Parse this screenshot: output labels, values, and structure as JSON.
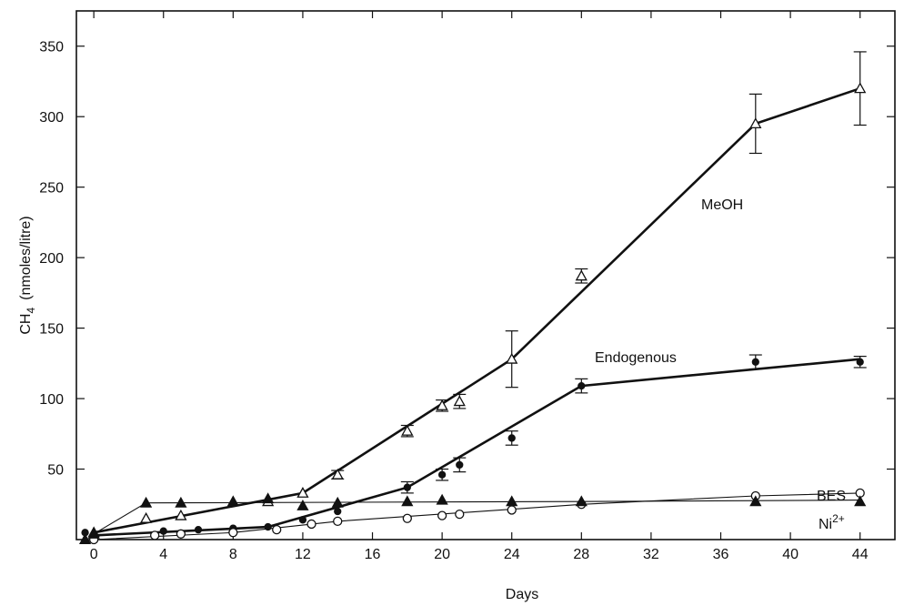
{
  "chart_data": {
    "type": "line",
    "xlabel": "Days",
    "ylabel": "CH",
    "ylabel_sub": "4",
    "ylabel_units": "(nmoles/litre)",
    "xlim": [
      -1,
      46
    ],
    "ylim": [
      0,
      375
    ],
    "xticks": [
      0,
      4,
      8,
      12,
      16,
      20,
      24,
      28,
      32,
      36,
      40,
      44
    ],
    "yticks": [
      50,
      100,
      150,
      200,
      250,
      300,
      350
    ],
    "series": [
      {
        "name": "MeOH",
        "marker": "open-triangle",
        "line_weight": "heavy",
        "points": [
          {
            "x": 0,
            "y": 5
          },
          {
            "x": 3,
            "y": 15
          },
          {
            "x": 5,
            "y": 17
          },
          {
            "x": 10,
            "y": 27
          },
          {
            "x": 12,
            "y": 33
          },
          {
            "x": 14,
            "y": 46,
            "err": 3
          },
          {
            "x": 18,
            "y": 77,
            "err": 4
          },
          {
            "x": 20,
            "y": 95,
            "err": 4
          },
          {
            "x": 21,
            "y": 98,
            "err": 5
          },
          {
            "x": 24,
            "y": 128,
            "err": 20
          },
          {
            "x": 28,
            "y": 187,
            "err": 5
          },
          {
            "x": 38,
            "y": 295,
            "err": 21
          },
          {
            "x": 44,
            "y": 320,
            "err": 26
          }
        ],
        "line": [
          [
            0,
            5
          ],
          [
            12,
            33
          ],
          [
            24,
            128
          ],
          [
            38,
            295
          ],
          [
            44,
            320
          ]
        ]
      },
      {
        "name": "Endogenous",
        "marker": "filled-circle",
        "line_weight": "heavy",
        "points": [
          {
            "x": -0.5,
            "y": 5
          },
          {
            "x": 4,
            "y": 6
          },
          {
            "x": 6,
            "y": 7
          },
          {
            "x": 8,
            "y": 8
          },
          {
            "x": 10,
            "y": 9
          },
          {
            "x": 12,
            "y": 14
          },
          {
            "x": 14,
            "y": 20
          },
          {
            "x": 18,
            "y": 37,
            "err": 4
          },
          {
            "x": 20,
            "y": 46,
            "err": 4
          },
          {
            "x": 21,
            "y": 53,
            "err": 5
          },
          {
            "x": 24,
            "y": 72,
            "err": 5
          },
          {
            "x": 28,
            "y": 109,
            "err": 5
          },
          {
            "x": 38,
            "y": 126,
            "err": 5
          },
          {
            "x": 44,
            "y": 126,
            "err": 4
          }
        ],
        "line": [
          [
            0,
            3
          ],
          [
            10,
            9
          ],
          [
            18,
            37
          ],
          [
            28,
            109
          ],
          [
            44,
            128
          ]
        ]
      },
      {
        "name": "BES",
        "marker": "open-circle",
        "line_weight": "light",
        "points": [
          {
            "x": 0,
            "y": 0
          },
          {
            "x": 3.5,
            "y": 3
          },
          {
            "x": 5,
            "y": 4
          },
          {
            "x": 8,
            "y": 5
          },
          {
            "x": 10.5,
            "y": 7
          },
          {
            "x": 12.5,
            "y": 11
          },
          {
            "x": 14,
            "y": 13
          },
          {
            "x": 18,
            "y": 15
          },
          {
            "x": 20,
            "y": 17
          },
          {
            "x": 21,
            "y": 18
          },
          {
            "x": 24,
            "y": 21
          },
          {
            "x": 28,
            "y": 25
          },
          {
            "x": 38,
            "y": 31
          },
          {
            "x": 44,
            "y": 33
          }
        ],
        "line": [
          [
            0,
            0
          ],
          [
            8,
            5
          ],
          [
            14,
            13
          ],
          [
            28,
            25
          ],
          [
            38,
            31
          ],
          [
            44,
            33
          ]
        ]
      },
      {
        "name": "Ni",
        "name_sup": "2+",
        "marker": "filled-triangle",
        "line_weight": "light",
        "points": [
          {
            "x": -0.5,
            "y": 0
          },
          {
            "x": 0,
            "y": 4
          },
          {
            "x": 3,
            "y": 26
          },
          {
            "x": 5,
            "y": 26
          },
          {
            "x": 8,
            "y": 27
          },
          {
            "x": 10,
            "y": 29
          },
          {
            "x": 12,
            "y": 24
          },
          {
            "x": 14,
            "y": 26
          },
          {
            "x": 18,
            "y": 27
          },
          {
            "x": 20,
            "y": 28
          },
          {
            "x": 24,
            "y": 27
          },
          {
            "x": 28,
            "y": 27
          },
          {
            "x": 38,
            "y": 27
          },
          {
            "x": 44,
            "y": 27
          }
        ],
        "line": [
          [
            0,
            4
          ],
          [
            3,
            26
          ],
          [
            28,
            27
          ],
          [
            44,
            28
          ]
        ]
      }
    ]
  }
}
